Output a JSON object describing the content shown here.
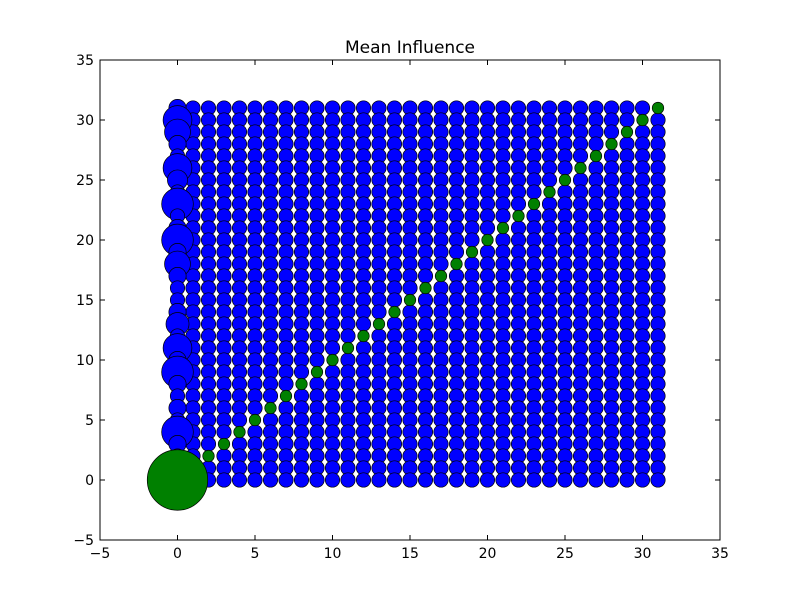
{
  "chart_data": {
    "type": "scatter",
    "title": "Mean Influence",
    "xlabel": "",
    "ylabel": "",
    "xlim": [
      -5,
      35
    ],
    "ylim": [
      -5,
      35
    ],
    "xticks": [
      -5,
      0,
      5,
      10,
      15,
      20,
      25,
      30,
      35
    ],
    "yticks": [
      -5,
      0,
      5,
      10,
      15,
      20,
      25,
      30,
      35
    ],
    "grid": false,
    "grid_range": {
      "x_min": 0,
      "x_max": 31,
      "y_min": 0,
      "y_max": 31
    },
    "colors": {
      "off_diagonal": "#0000ff",
      "diagonal": "#008000",
      "edge": "#000000"
    },
    "column0_sizes": [
      4.2,
      2.2,
      1.0,
      1.2,
      2.2,
      1.0,
      1.2,
      1.0,
      1.2,
      2.2,
      1.2,
      2.0,
      1.0,
      1.6,
      1.2,
      1.0,
      1.0,
      1.2,
      1.8,
      1.2,
      2.2,
      1.2,
      1.0,
      2.2,
      1.0,
      1.4,
      2.0,
      1.0,
      1.2,
      1.8,
      2.0,
      1.2
    ],
    "diagonal_size": 0.8
  }
}
